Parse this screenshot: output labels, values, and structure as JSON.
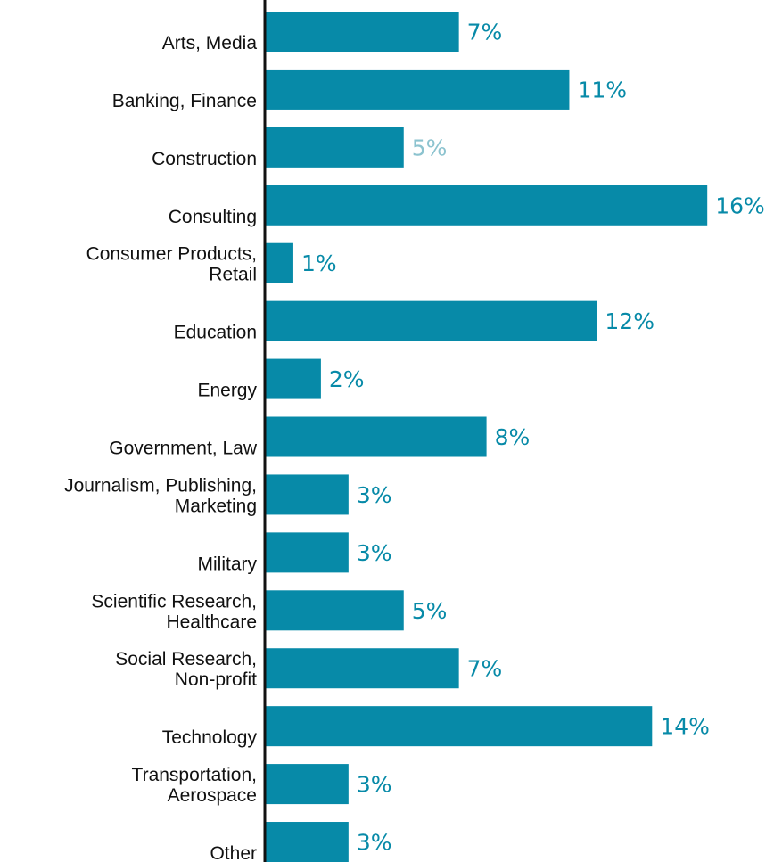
{
  "chart_data": {
    "type": "bar",
    "orientation": "horizontal",
    "categories": [
      [
        "Arts, Media"
      ],
      [
        "Banking, Finance"
      ],
      [
        "Construction"
      ],
      [
        "Consulting"
      ],
      [
        "Consumer Products,",
        "Retail"
      ],
      [
        "Education"
      ],
      [
        "Energy"
      ],
      [
        "Government, Law"
      ],
      [
        "Journalism, Publishing,",
        "Marketing"
      ],
      [
        "Military"
      ],
      [
        "Scientific Research,",
        "Healthcare"
      ],
      [
        "Social Research,",
        "Non-profit"
      ],
      [
        "Technology"
      ],
      [
        "Transportation,",
        "Aerospace"
      ],
      [
        "Other"
      ]
    ],
    "values": [
      7,
      11,
      5,
      16,
      1,
      12,
      2,
      8,
      3,
      3,
      5,
      7,
      14,
      3,
      3
    ],
    "value_labels": [
      "7%",
      "11%",
      "5%",
      "16%",
      "1%",
      "12%",
      "2%",
      "8%",
      "3%",
      "3%",
      "5%",
      "7%",
      "14%",
      "3%",
      "3%"
    ],
    "title": "",
    "xlabel": "",
    "ylabel": "",
    "xlim": [
      0,
      16
    ],
    "grid": false,
    "legend": "none",
    "colors": {
      "bar": "#078aa8",
      "value_label": "#078aa8",
      "value_label_muted": "#8cc3cf",
      "axis": "#111111",
      "category_label": "#111111"
    },
    "muted_value_indices": [
      2
    ]
  }
}
